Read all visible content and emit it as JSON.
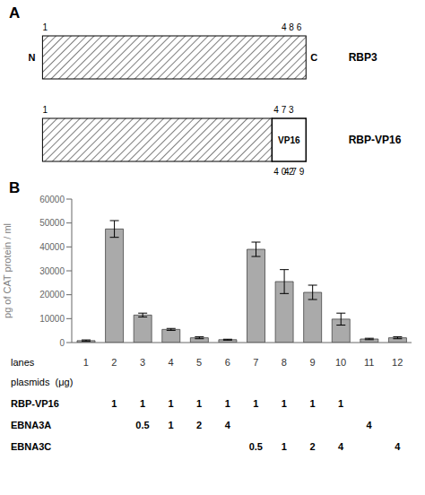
{
  "panel_labels": [
    "A",
    "B"
  ],
  "schematic": {
    "constructs": [
      {
        "name": "RBP3",
        "n_label": "N",
        "c_label": "C",
        "numbers_above": [
          "1",
          "4 8 6"
        ]
      },
      {
        "name": "RBP-VP16",
        "domain": "VP16",
        "numbers_above": [
          "1",
          "4 7 3"
        ],
        "numbers_below": [
          "4 0 2",
          "4 7 9"
        ]
      }
    ]
  },
  "chart_data": {
    "type": "bar",
    "ylabel": "pg of CAT protein / ml",
    "categories": [
      "1",
      "2",
      "3",
      "4",
      "5",
      "6",
      "7",
      "8",
      "9",
      "10",
      "11",
      "12"
    ],
    "values": [
      800,
      47500,
      11500,
      5500,
      2000,
      1200,
      39000,
      25500,
      21000,
      9800,
      1500,
      2000
    ],
    "errors": [
      300,
      3500,
      800,
      400,
      400,
      200,
      3000,
      5000,
      3000,
      2500,
      300,
      400
    ],
    "color": "#aaaaaa",
    "edge_color": "#333333",
    "ylim": [
      0,
      60000
    ],
    "yticks": [
      0,
      10000,
      20000,
      30000,
      40000,
      50000,
      60000
    ],
    "table": {
      "category_row_label": "lanes",
      "rows": [
        {
          "label": "plasmids  (μg)"
        },
        {
          "label": "RBP-VP16",
          "values": [
            null,
            1,
            1,
            1,
            1,
            1,
            1,
            1,
            1,
            1,
            null,
            null
          ]
        },
        {
          "label": "EBNA3A",
          "values": [
            null,
            null,
            0.5,
            1,
            2,
            4,
            null,
            null,
            null,
            null,
            4,
            null
          ]
        },
        {
          "label": "EBNA3C",
          "values": [
            null,
            null,
            null,
            null,
            null,
            null,
            0.5,
            1,
            2,
            4,
            null,
            4
          ]
        }
      ]
    }
  }
}
